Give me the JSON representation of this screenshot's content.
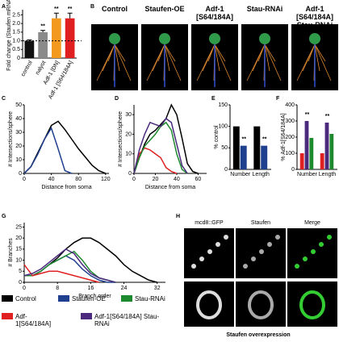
{
  "panel_labels": [
    "A",
    "B",
    "C",
    "D",
    "E",
    "F",
    "G",
    "H"
  ],
  "panel_b": {
    "titles": [
      "Control",
      "Staufen-OE",
      "Adf-1 [S64/184A]",
      "Stau-RNAi",
      "Adf-1 [S64/184A] Stau-RNAi"
    ]
  },
  "panel_h": {
    "columns": [
      "mcd8::GFP",
      "Staufen",
      "Merge"
    ],
    "caption": "Staufen overexpression"
  },
  "legend": [
    {
      "label": "Control",
      "color": "#000000"
    },
    {
      "label": "Staufen-OE",
      "color": "#1f3f8f"
    },
    {
      "label": "Stau-RNAi",
      "color": "#1e8a2e"
    },
    {
      "label": "Adf-1[S64/184A]",
      "color": "#e02020"
    },
    {
      "label": "Adf-1[S64/184A] Stau-RNAi",
      "color": "#4b2a7e"
    }
  ],
  "chart_data": [
    {
      "type": "bar",
      "ylabel": "Fold change (Staufen mRNA)",
      "categories": [
        "control",
        "nalyot",
        "Adf-1 [DN]",
        "Adf-1 [S64/184A]"
      ],
      "values": [
        1,
        1.5,
        2.3,
        2.3
      ],
      "errors": [
        0.05,
        0.1,
        0.3,
        0.3
      ],
      "colors": [
        "#111111",
        "#8a8a8a",
        "#f39a1e",
        "#e02020"
      ],
      "value_labels": [
        null,
        "**",
        "**",
        "**"
      ],
      "ylim": [
        0,
        2.8
      ],
      "yticks": [
        0,
        0.5,
        {
          "value": 1,
          "label": "1.0"
        },
        1.5,
        {
          "value": 2,
          "label": "2.0"
        },
        2.5
      ],
      "reference_line": 1
    },
    {
      "type": "line",
      "xlabel": "Distance from soma",
      "ylabel": "# Intersections/sphere",
      "x": [
        0,
        10,
        20,
        30,
        40,
        50,
        60,
        70,
        80,
        90,
        100,
        110,
        120
      ],
      "series": [
        {
          "color": "#000000",
          "values": [
            0,
            5,
            15,
            25,
            35,
            38,
            32,
            25,
            18,
            12,
            6,
            2,
            0
          ]
        },
        {
          "color": "#1f3f8f",
          "values": [
            0,
            5,
            14,
            25,
            33,
            18,
            2,
            0,
            null,
            null,
            null,
            null,
            null
          ]
        }
      ],
      "xlim": [
        0,
        125
      ],
      "xticks": [
        0,
        40,
        80,
        120
      ],
      "ylim": [
        0,
        50
      ],
      "yticks": [
        0,
        10,
        20,
        30,
        40,
        50
      ]
    },
    {
      "type": "line",
      "xlabel": "Distance from soma",
      "ylabel": "# Intersections/sphere",
      "x": [
        0,
        5,
        10,
        15,
        20,
        25,
        30,
        35,
        40,
        45,
        50,
        55,
        60
      ],
      "series": [
        {
          "color": "#000000",
          "values": [
            0,
            8,
            15,
            20,
            22,
            25,
            28,
            35,
            30,
            18,
            5,
            1,
            0
          ]
        },
        {
          "color": "#e02020",
          "values": [
            0,
            10,
            13,
            12,
            10,
            8,
            3,
            1,
            0,
            null,
            null,
            null,
            null
          ]
        },
        {
          "color": "#1e8a2e",
          "values": [
            0,
            8,
            14,
            17,
            20,
            24,
            26,
            22,
            10,
            2,
            0,
            null,
            null
          ]
        },
        {
          "color": "#4b2a7e",
          "values": [
            0,
            12,
            20,
            26,
            25,
            24,
            28,
            26,
            15,
            4,
            0,
            null,
            null
          ]
        }
      ],
      "xlim": [
        0,
        68
      ],
      "xticks": [
        0,
        20,
        40,
        60
      ],
      "ylim": [
        0,
        35
      ],
      "yticks": [
        0,
        10,
        20,
        30
      ]
    },
    {
      "type": "groupbar",
      "ylabel": "% control",
      "categories": [
        "Number",
        "Length"
      ],
      "series": [
        {
          "color": "#000000",
          "values": [
            100,
            100
          ]
        },
        {
          "color": "#1f3f8f",
          "values": [
            55,
            55
          ],
          "value_labels": [
            "**",
            "**"
          ]
        }
      ],
      "ylim": [
        0,
        150
      ],
      "yticks": [
        0,
        50,
        100,
        150
      ]
    },
    {
      "type": "groupbar",
      "ylabel": "% Adf-1[S64/184A]",
      "categories": [
        "Number",
        "Length"
      ],
      "series": [
        {
          "color": "#e02020",
          "values": [
            100,
            100
          ]
        },
        {
          "color": "#4b2a7e",
          "values": [
            300,
            290
          ],
          "value_labels": [
            "**",
            "**"
          ]
        },
        {
          "color": "#1e8a2e",
          "values": [
            195,
            220
          ]
        }
      ],
      "ylim": [
        0,
        400
      ],
      "yticks": [
        0,
        100,
        200,
        300,
        400
      ]
    },
    {
      "type": "line",
      "xlabel": "Branch order",
      "ylabel": "# Branches",
      "x": [
        0,
        2,
        4,
        6,
        8,
        10,
        12,
        14,
        16,
        18,
        20,
        22,
        24,
        26,
        28,
        30,
        32
      ],
      "series": [
        {
          "name": "Control",
          "color": "#000000",
          "values": [
            3,
            3,
            5,
            8,
            11,
            15,
            18,
            20,
            20,
            18,
            15,
            12,
            8,
            5,
            3,
            1,
            0
          ]
        },
        {
          "name": "Staufen-OE",
          "color": "#1f3f8f",
          "values": [
            3,
            3,
            5,
            8,
            10,
            12,
            10,
            6,
            3,
            1,
            0,
            0,
            null,
            null,
            null,
            null,
            null
          ]
        },
        {
          "name": "Stau-RNAi",
          "color": "#1e8a2e",
          "values": [
            3,
            3,
            5,
            8,
            10,
            12,
            14,
            10,
            5,
            2,
            1,
            0,
            null,
            null,
            null,
            null,
            null
          ]
        },
        {
          "name": "Adf-1[S64/184A]",
          "color": "#e02020",
          "values": [
            8,
            3,
            4,
            5,
            5,
            4,
            3,
            2,
            1,
            0,
            null,
            null,
            null,
            null,
            null,
            null,
            null
          ]
        },
        {
          "name": "Adf-1[S64/184A] Stau-RNAi",
          "color": "#4b2a7e",
          "values": [
            3,
            4,
            6,
            9,
            12,
            15,
            13,
            8,
            4,
            2,
            1,
            0,
            null,
            null,
            null,
            null,
            null
          ]
        }
      ],
      "xlim": [
        0,
        34
      ],
      "xticks": [
        0,
        8,
        16,
        24,
        32
      ],
      "ylim": [
        0,
        27
      ],
      "yticks": [
        0,
        5,
        10,
        15,
        20,
        25
      ]
    }
  ]
}
